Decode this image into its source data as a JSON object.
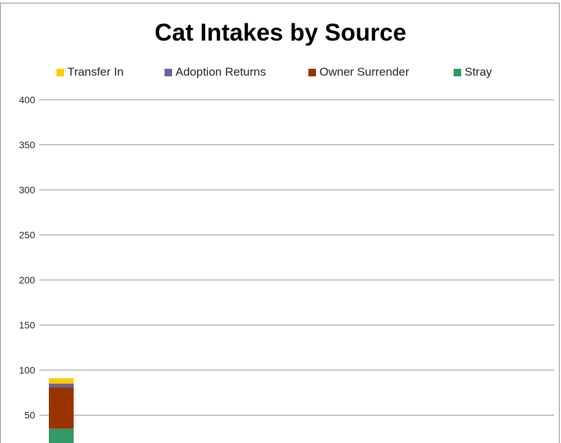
{
  "chart_data": {
    "type": "bar",
    "stacked": true,
    "title": "Cat Intakes by Source",
    "xlabel": "",
    "ylabel": "",
    "ylim": [
      0,
      400
    ],
    "y_ticks": [
      50,
      100,
      150,
      200,
      250,
      300,
      350,
      400
    ],
    "grid": true,
    "legend_position": "top",
    "categories": [
      ""
    ],
    "series": [
      {
        "name": "Stray",
        "color": "#339966",
        "values": [
          35
        ]
      },
      {
        "name": "Owner Surrender",
        "color": "#993300",
        "values": [
          46
        ]
      },
      {
        "name": "Adoption Returns",
        "color": "#666699",
        "values": [
          4
        ]
      },
      {
        "name": "Transfer In",
        "color": "#ffcc00",
        "values": [
          6
        ]
      }
    ],
    "legend_order": [
      3,
      2,
      1,
      0
    ]
  }
}
